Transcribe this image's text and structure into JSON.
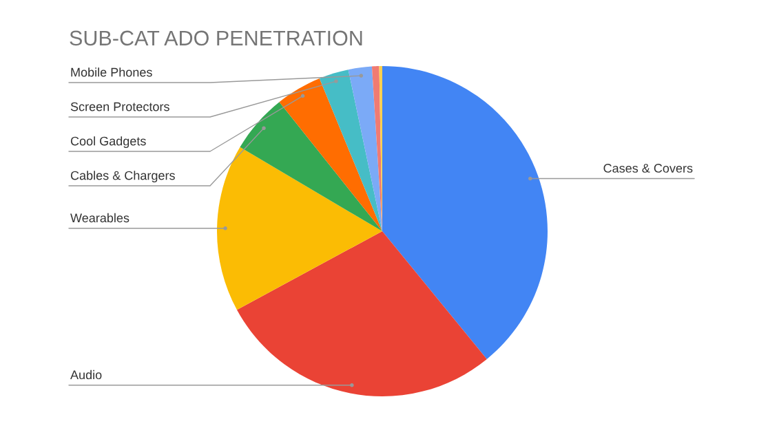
{
  "chart_data": {
    "type": "pie",
    "title": "SUB-CAT ADO PENETRATION",
    "categories": [
      "Cases & Covers",
      "Audio",
      "Wearables",
      "Cables & Chargers",
      "Cool Gadgets",
      "Screen Protectors",
      "Mobile Phones",
      null,
      null
    ],
    "values": [
      39.1,
      28,
      16.4,
      5.8,
      4.5,
      2.9,
      2.3,
      0.7,
      0.3
    ],
    "colors": [
      "#4285f4",
      "#ea4335",
      "#fbbc04",
      "#34a853",
      "#ff6d01",
      "#46bdc6",
      "#7baaf7",
      "#f07b72",
      "#fcd04f"
    ],
    "legend": false
  }
}
